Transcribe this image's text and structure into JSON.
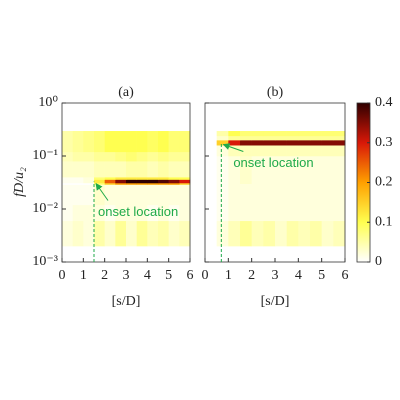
{
  "chart_data": [
    {
      "type": "heatmap",
      "title": "(a)",
      "xlabel": "[s/D]",
      "ylabel": "fD/u₂",
      "ylog": true,
      "xlim": [
        0,
        6
      ],
      "xticks": [
        0,
        1,
        2,
        3,
        4,
        5,
        6
      ],
      "ylim": [
        0.001,
        1
      ],
      "yticks": [
        {
          "value": 0.001,
          "label": "10⁻³"
        },
        {
          "value": 0.01,
          "label": "10⁻²"
        },
        {
          "value": 0.1,
          "label": "10⁻¹"
        },
        {
          "value": 1,
          "label": "10⁰"
        }
      ],
      "show_ytick_labels": true,
      "x_edges": [
        0,
        0.5,
        1,
        1.5,
        2,
        2.5,
        3,
        3.5,
        4,
        4.5,
        5,
        5.5,
        6
      ],
      "y_edges": [
        0.001,
        0.002,
        0.006,
        0.012,
        0.029,
        0.031,
        0.036,
        0.04,
        0.08,
        0.12,
        0.3,
        1
      ],
      "z": [
        [
          0,
          0,
          0,
          0,
          0,
          0,
          0,
          0,
          0,
          0,
          0,
          0
        ],
        [
          0.02,
          0.03,
          0.02,
          0.05,
          0.03,
          0.06,
          0.03,
          0.06,
          0.04,
          0.05,
          0.03,
          0.04
        ],
        [
          0.01,
          0.02,
          0.02,
          0.02,
          0.01,
          0.02,
          0.02,
          0.02,
          0.01,
          0.02,
          0.01,
          0.02
        ],
        [
          0.01,
          0.01,
          0.01,
          0.03,
          0.02,
          0.02,
          0.02,
          0.02,
          0.02,
          0.02,
          0.02,
          0.02
        ],
        [
          0,
          0,
          0,
          0.08,
          0.15,
          0.2,
          0.2,
          0.2,
          0.2,
          0.2,
          0.2,
          0.15
        ],
        [
          0.01,
          0.01,
          0.02,
          0.12,
          0.25,
          0.35,
          0.4,
          0.4,
          0.4,
          0.38,
          0.35,
          0.3
        ],
        [
          0.01,
          0.01,
          0.02,
          0.08,
          0.1,
          0.12,
          0.12,
          0.12,
          0.12,
          0.12,
          0.1,
          0.1
        ],
        [
          0.03,
          0.03,
          0.03,
          0.04,
          0.04,
          0.04,
          0.05,
          0.05,
          0.04,
          0.05,
          0.04,
          0.04
        ],
        [
          0.04,
          0.05,
          0.05,
          0.06,
          0.06,
          0.07,
          0.08,
          0.07,
          0.06,
          0.07,
          0.06,
          0.06
        ],
        [
          0.05,
          0.06,
          0.07,
          0.08,
          0.1,
          0.1,
          0.1,
          0.1,
          0.09,
          0.1,
          0.08,
          0.08
        ],
        [
          0,
          0,
          0,
          0,
          0,
          0,
          0,
          0,
          0,
          0,
          0,
          0
        ]
      ],
      "annotation": {
        "text": "onset location",
        "x": 1.5,
        "y": 0.033
      }
    },
    {
      "type": "heatmap",
      "title": "(b)",
      "xlabel": "[s/D]",
      "ylog": true,
      "xlim": [
        0,
        6
      ],
      "xticks": [
        0,
        1,
        2,
        3,
        4,
        5,
        6
      ],
      "ylim": [
        0.001,
        1
      ],
      "yticks": [
        0.001,
        0.01,
        0.1,
        1
      ],
      "show_ytick_labels": false,
      "x_edges": [
        0,
        0.5,
        1,
        1.5,
        2,
        2.5,
        3,
        3.5,
        4,
        4.5,
        5,
        5.5,
        6
      ],
      "y_edges": [
        0.001,
        0.002,
        0.006,
        0.03,
        0.1,
        0.16,
        0.2,
        0.24,
        0.3,
        1
      ],
      "z": [
        [
          0,
          0,
          0,
          0,
          0,
          0,
          0,
          0,
          0,
          0,
          0,
          0
        ],
        [
          0,
          0.02,
          0.04,
          0.06,
          0.04,
          0.05,
          0.03,
          0.05,
          0.04,
          0.05,
          0.03,
          0.04
        ],
        [
          0,
          0.01,
          0.02,
          0.02,
          0.02,
          0.02,
          0.02,
          0.02,
          0.02,
          0.02,
          0.02,
          0.02
        ],
        [
          0,
          0.01,
          0.02,
          0.03,
          0.02,
          0.02,
          0.02,
          0.02,
          0.02,
          0.02,
          0.02,
          0.02
        ],
        [
          0,
          0.02,
          0.04,
          0.04,
          0.04,
          0.04,
          0.04,
          0.04,
          0.04,
          0.04,
          0.04,
          0.04
        ],
        [
          0,
          0.15,
          0.3,
          0.35,
          0.35,
          0.35,
          0.35,
          0.35,
          0.35,
          0.35,
          0.35,
          0.35
        ],
        [
          0,
          0.03,
          0.06,
          0.06,
          0.06,
          0.06,
          0.06,
          0.06,
          0.06,
          0.06,
          0.06,
          0.06
        ],
        [
          0,
          0.05,
          0.1,
          0.08,
          0.08,
          0.08,
          0.08,
          0.08,
          0.08,
          0.08,
          0.08,
          0.08
        ],
        [
          0,
          0,
          0,
          0,
          0,
          0,
          0,
          0,
          0,
          0,
          0,
          0
        ]
      ],
      "annotation": {
        "text": "onset location",
        "x": 0.7,
        "y": 0.18
      },
      "colorbar": {
        "lim": [
          0,
          0.4
        ],
        "ticks": [
          0,
          0.1,
          0.2,
          0.3,
          0.4
        ],
        "colors": [
          "#ffffff",
          "#ffff50",
          "#ffa000",
          "#d81808",
          "#300000"
        ]
      }
    }
  ]
}
